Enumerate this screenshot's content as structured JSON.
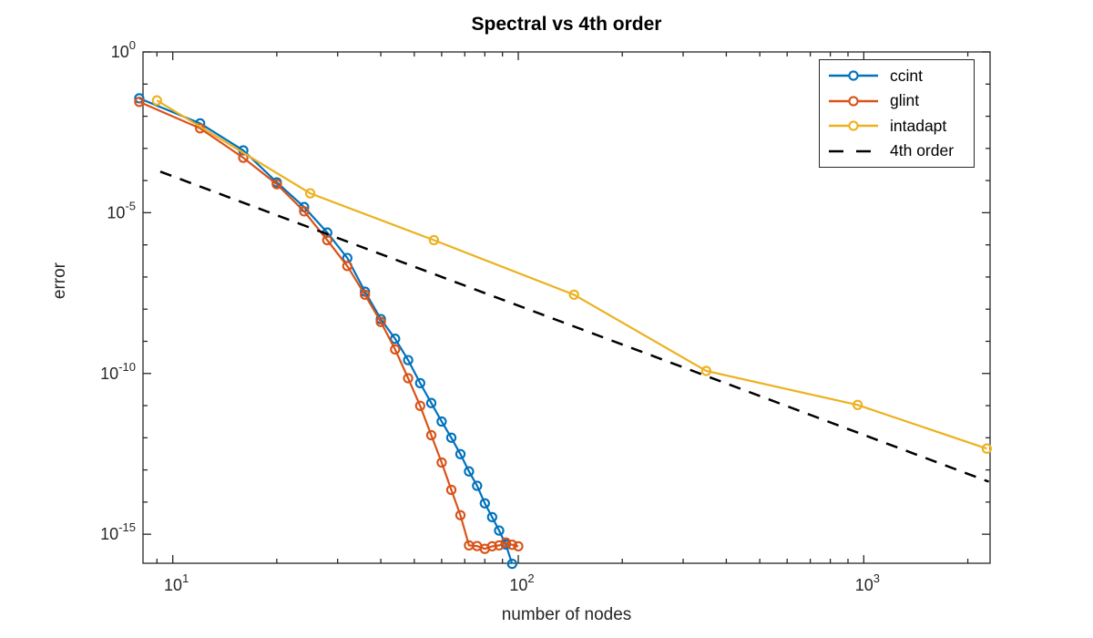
{
  "figure": {
    "title": "Spectral vs 4th order",
    "xlabel": "number of nodes",
    "ylabel": "error"
  },
  "chart_data": {
    "type": "line",
    "title": "Spectral vs 4th order",
    "xlabel": "number of nodes",
    "ylabel": "error",
    "x_scale": "log",
    "y_scale": "log",
    "xlim": [
      8.2,
      2320
    ],
    "ylim": [
      1.25e-16,
      1.0
    ],
    "grid": false,
    "legend_position": "northeast",
    "axis_color": "#262626",
    "x_major_ticks": [
      10,
      100,
      1000
    ],
    "x_major_tick_labels": [
      "10^{1}",
      "10^{2}",
      "10^{3}"
    ],
    "y_major_ticks": [
      1.0,
      1e-05,
      1e-10,
      1e-15
    ],
    "y_major_tick_labels": [
      "10^{0}",
      "10^{-5}",
      "10^{-10}",
      "10^{-15}"
    ],
    "series": [
      {
        "name": "ccint",
        "color": "#0072BD",
        "line_style": "solid",
        "marker": "o",
        "x": [
          8,
          12,
          16,
          20,
          24,
          28,
          32,
          36,
          40,
          44,
          48,
          52,
          56,
          60,
          64,
          68,
          72,
          76,
          80,
          84,
          88,
          92,
          96
        ],
        "y": [
          0.036,
          0.006,
          0.00087,
          8.8e-05,
          1.5e-05,
          2.4e-06,
          3.9e-07,
          3.5e-08,
          4.9e-09,
          1.2e-09,
          2.6e-10,
          5e-11,
          1.2e-11,
          3.2e-12,
          1e-12,
          3.1e-13,
          9e-14,
          3.2e-14,
          9.1e-15,
          3.4e-15,
          1.3e-15,
          4.8e-16,
          1.2e-16
        ]
      },
      {
        "name": "glint",
        "color": "#D95319",
        "line_style": "solid",
        "marker": "o",
        "x": [
          8,
          12,
          16,
          20,
          24,
          28,
          32,
          36,
          40,
          44,
          48,
          52,
          56,
          60,
          64,
          68,
          72,
          76,
          80,
          84,
          88,
          92,
          96,
          100
        ],
        "y": [
          0.028,
          0.0042,
          0.00051,
          7.7e-05,
          1.1e-05,
          1.4e-06,
          2.2e-07,
          2.8e-08,
          4e-09,
          5.6e-10,
          7.1e-11,
          9.8e-12,
          1.2e-12,
          1.7e-13,
          2.4e-14,
          3.9e-15,
          4.5e-16,
          4.3e-16,
          3.5e-16,
          4.2e-16,
          4.5e-16,
          5.5e-16,
          4.7e-16,
          4.2e-16
        ]
      },
      {
        "name": "intadapt",
        "color": "#EDB120",
        "line_style": "solid",
        "marker": "o",
        "x": [
          9,
          25,
          57,
          145,
          350,
          960,
          2270
        ],
        "y": [
          0.031,
          4e-05,
          1.4e-06,
          2.8e-08,
          1.2e-10,
          1.05e-11,
          4.6e-13
        ]
      },
      {
        "name": "4th order",
        "color": "#000000",
        "line_style": "dashed",
        "marker": "none",
        "x": [
          9.2,
          2300
        ],
        "y": [
          0.00019,
          4.3e-14
        ]
      }
    ]
  }
}
